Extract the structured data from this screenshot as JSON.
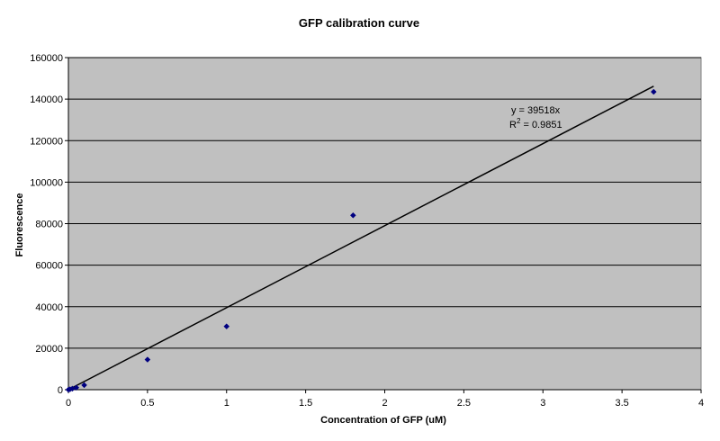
{
  "chart_data": {
    "type": "scatter",
    "title": "GFP calibration curve",
    "xlabel": "Concentration of GFP (uM)",
    "ylabel": "Fluorescence",
    "xlim": [
      0,
      4
    ],
    "ylim": [
      0,
      160000
    ],
    "xticks": [
      "0",
      "0.5",
      "1",
      "1.5",
      "2",
      "2.5",
      "3",
      "3.5",
      "4"
    ],
    "yticks": [
      "0",
      "20000",
      "40000",
      "60000",
      "80000",
      "100000",
      "120000",
      "140000",
      "160000"
    ],
    "grid": "horizontal",
    "legend": "none",
    "series": [
      {
        "points": [
          {
            "x": 0,
            "y": 0
          },
          {
            "x": 0.01,
            "y": 200
          },
          {
            "x": 0.025,
            "y": 500
          },
          {
            "x": 0.05,
            "y": 1000
          },
          {
            "x": 0.1,
            "y": 2200
          },
          {
            "x": 0.5,
            "y": 14500
          },
          {
            "x": 1,
            "y": 30500
          },
          {
            "x": 1.8,
            "y": 84000
          },
          {
            "x": 3.7,
            "y": 143500
          }
        ],
        "color": "#000080"
      }
    ],
    "trendline": {
      "slope": 39518,
      "x_range": [
        0,
        3.7
      ],
      "color": "#000000"
    },
    "annotation": {
      "equation": "y = 39518x",
      "r2_prefix": "R",
      "r2_sup": "2",
      "r2_suffix": " = 0.9851"
    },
    "plot_background": "#c0c0c0"
  }
}
